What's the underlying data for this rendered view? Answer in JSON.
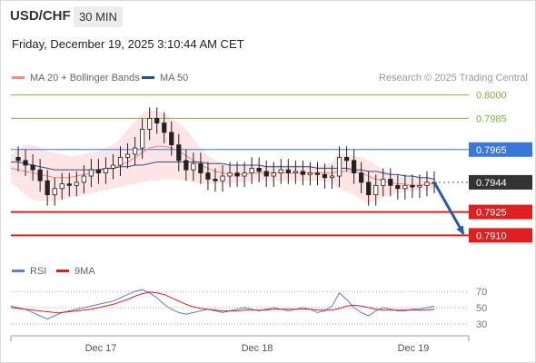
{
  "header": {
    "symbol": "USD/CHF",
    "timeframe": "30 MIN",
    "datetime": "Friday, December 19, 2025 3:10:44 AM CET"
  },
  "legend": {
    "items": [
      {
        "label": "MA 20 + Bollinger Bands",
        "color": "#f28b82"
      },
      {
        "label": "MA 50",
        "color": "#2b4f8c"
      }
    ],
    "credit": "Research © 2025 Trading Central"
  },
  "rsi_legend": {
    "items": [
      {
        "label": "RSI",
        "color": "#5b7fd6"
      },
      {
        "label": "9MA",
        "color": "#e02020"
      }
    ]
  },
  "chart_data": [
    {
      "type": "candlestick",
      "title": "USD/CHF",
      "ylim": [
        0.7898,
        0.8005
      ],
      "x_ticks": [
        "Dec 17",
        "Dec 18",
        "Dec 19"
      ],
      "levels": [
        {
          "value": 0.8,
          "label": "0.8000",
          "kind": "target",
          "color": "#7cb342"
        },
        {
          "value": 0.7985,
          "label": "0.7985",
          "kind": "target",
          "color": "#7cb342"
        },
        {
          "value": 0.7965,
          "label": "0.7965",
          "kind": "pivot",
          "color": "#3a78d8"
        },
        {
          "value": 0.7944,
          "label": "0.7944",
          "kind": "last",
          "color": "#333333"
        },
        {
          "value": 0.7925,
          "label": "0.7925",
          "kind": "support",
          "color": "#e02020"
        },
        {
          "value": 0.791,
          "label": "0.7910",
          "kind": "support",
          "color": "#e02020"
        }
      ],
      "series": [
        {
          "name": "Price",
          "values": [
            0.796,
            0.7958,
            0.7955,
            0.7952,
            0.7945,
            0.7936,
            0.794,
            0.7943,
            0.7942,
            0.7944,
            0.7948,
            0.7952,
            0.795,
            0.7953,
            0.7955,
            0.796,
            0.7962,
            0.7966,
            0.7978,
            0.7985,
            0.7982,
            0.7976,
            0.7968,
            0.7958,
            0.7952,
            0.7956,
            0.795,
            0.7946,
            0.7945,
            0.7948,
            0.795,
            0.7948,
            0.795,
            0.7953,
            0.7951,
            0.7948,
            0.795,
            0.7952,
            0.795,
            0.7951,
            0.7949,
            0.795,
            0.7949,
            0.7947,
            0.7948,
            0.796,
            0.7958,
            0.795,
            0.7944,
            0.7936,
            0.7942,
            0.7946,
            0.7942,
            0.794,
            0.7942,
            0.7941,
            0.7942,
            0.7944,
            0.7944
          ]
        },
        {
          "name": "MA 20",
          "values": [
            0.7953,
            0.7952,
            0.7951,
            0.795,
            0.7949,
            0.7948,
            0.7947,
            0.7947,
            0.7947,
            0.7948,
            0.7949,
            0.795,
            0.7951,
            0.7952,
            0.7953,
            0.7955,
            0.7957,
            0.796,
            0.7963,
            0.7966,
            0.7967,
            0.7967,
            0.7966,
            0.7964,
            0.7961,
            0.7958,
            0.7955,
            0.7953,
            0.7951,
            0.795,
            0.7949,
            0.7949,
            0.7949,
            0.795,
            0.795,
            0.795,
            0.795,
            0.795,
            0.795,
            0.795,
            0.795,
            0.795,
            0.795,
            0.795,
            0.795,
            0.7951,
            0.7951,
            0.7951,
            0.795,
            0.7948,
            0.7946,
            0.7945,
            0.7944,
            0.7943,
            0.7943,
            0.7942,
            0.7942,
            0.7943,
            0.7943
          ]
        },
        {
          "name": "MA 50",
          "values": [
            0.7957,
            0.7957,
            0.7956,
            0.7955,
            0.7954,
            0.7953,
            0.7952,
            0.7952,
            0.7952,
            0.7952,
            0.7952,
            0.7952,
            0.7952,
            0.7953,
            0.7953,
            0.7954,
            0.7954,
            0.7955,
            0.7955,
            0.7956,
            0.7957,
            0.7957,
            0.7957,
            0.7957,
            0.7957,
            0.7957,
            0.7957,
            0.7956,
            0.7956,
            0.7956,
            0.7955,
            0.7955,
            0.7955,
            0.7955,
            0.7955,
            0.7954,
            0.7954,
            0.7954,
            0.7954,
            0.7954,
            0.7954,
            0.7954,
            0.7953,
            0.7953,
            0.7953,
            0.7953,
            0.7953,
            0.7952,
            0.7952,
            0.7951,
            0.7951,
            0.795,
            0.7949,
            0.7949,
            0.7948,
            0.7948,
            0.7947,
            0.7947,
            0.7946
          ]
        },
        {
          "name": "Bollinger Upper",
          "values": [
            0.7962,
            0.7965,
            0.7968,
            0.7968,
            0.7966,
            0.7964,
            0.7963,
            0.7962,
            0.7961,
            0.7961,
            0.7962,
            0.7963,
            0.7964,
            0.7966,
            0.7968,
            0.7972,
            0.7978,
            0.7983,
            0.7988,
            0.799,
            0.799,
            0.7988,
            0.7985,
            0.7982,
            0.7978,
            0.7972,
            0.7966,
            0.7961,
            0.7958,
            0.7956,
            0.7955,
            0.7955,
            0.7955,
            0.7955,
            0.7955,
            0.7955,
            0.7955,
            0.7955,
            0.7955,
            0.7955,
            0.7955,
            0.7955,
            0.7955,
            0.7955,
            0.7957,
            0.7962,
            0.7962,
            0.7961,
            0.796,
            0.7958,
            0.7955,
            0.7952,
            0.795,
            0.7948,
            0.7947,
            0.7947,
            0.7947,
            0.7947,
            0.7947
          ]
        },
        {
          "name": "Bollinger Lower",
          "values": [
            0.7944,
            0.794,
            0.7936,
            0.7933,
            0.7932,
            0.7932,
            0.7932,
            0.7933,
            0.7934,
            0.7935,
            0.7936,
            0.7937,
            0.7938,
            0.7939,
            0.794,
            0.7941,
            0.7942,
            0.7943,
            0.7944,
            0.7945,
            0.7945,
            0.7946,
            0.7946,
            0.7946,
            0.7945,
            0.7944,
            0.7943,
            0.7943,
            0.7943,
            0.7943,
            0.7943,
            0.7944,
            0.7944,
            0.7945,
            0.7945,
            0.7945,
            0.7945,
            0.7945,
            0.7945,
            0.7945,
            0.7945,
            0.7945,
            0.7945,
            0.7945,
            0.7943,
            0.794,
            0.7938,
            0.7936,
            0.7933,
            0.793,
            0.7932,
            0.7934,
            0.7936,
            0.7937,
            0.7938,
            0.7938,
            0.7939,
            0.7939,
            0.794
          ]
        }
      ],
      "forecast": {
        "from": 0.7944,
        "to": 0.791,
        "color": "#2b5aa0"
      }
    },
    {
      "type": "line",
      "title": "RSI",
      "ylim": [
        20,
        80
      ],
      "y_ticks": [
        30,
        50,
        70
      ],
      "series": [
        {
          "name": "RSI",
          "values": [
            52,
            50,
            48,
            44,
            40,
            36,
            40,
            44,
            46,
            48,
            50,
            52,
            54,
            56,
            58,
            62,
            66,
            70,
            72,
            68,
            62,
            54,
            48,
            44,
            42,
            44,
            46,
            48,
            46,
            44,
            46,
            48,
            50,
            48,
            46,
            48,
            50,
            48,
            46,
            48,
            50,
            48,
            44,
            46,
            52,
            68,
            60,
            50,
            44,
            40,
            46,
            50,
            48,
            46,
            46,
            48,
            48,
            50,
            52
          ]
        },
        {
          "name": "9MA",
          "values": [
            50,
            49,
            48,
            47,
            46,
            45,
            44,
            44,
            45,
            46,
            47,
            48,
            50,
            52,
            54,
            57,
            60,
            64,
            67,
            69,
            68,
            66,
            62,
            58,
            54,
            51,
            49,
            48,
            47,
            46,
            46,
            46,
            47,
            47,
            47,
            47,
            48,
            48,
            48,
            48,
            48,
            48,
            47,
            47,
            47,
            49,
            52,
            53,
            52,
            50,
            48,
            47,
            47,
            47,
            47,
            47,
            47,
            47,
            48
          ]
        }
      ]
    }
  ]
}
